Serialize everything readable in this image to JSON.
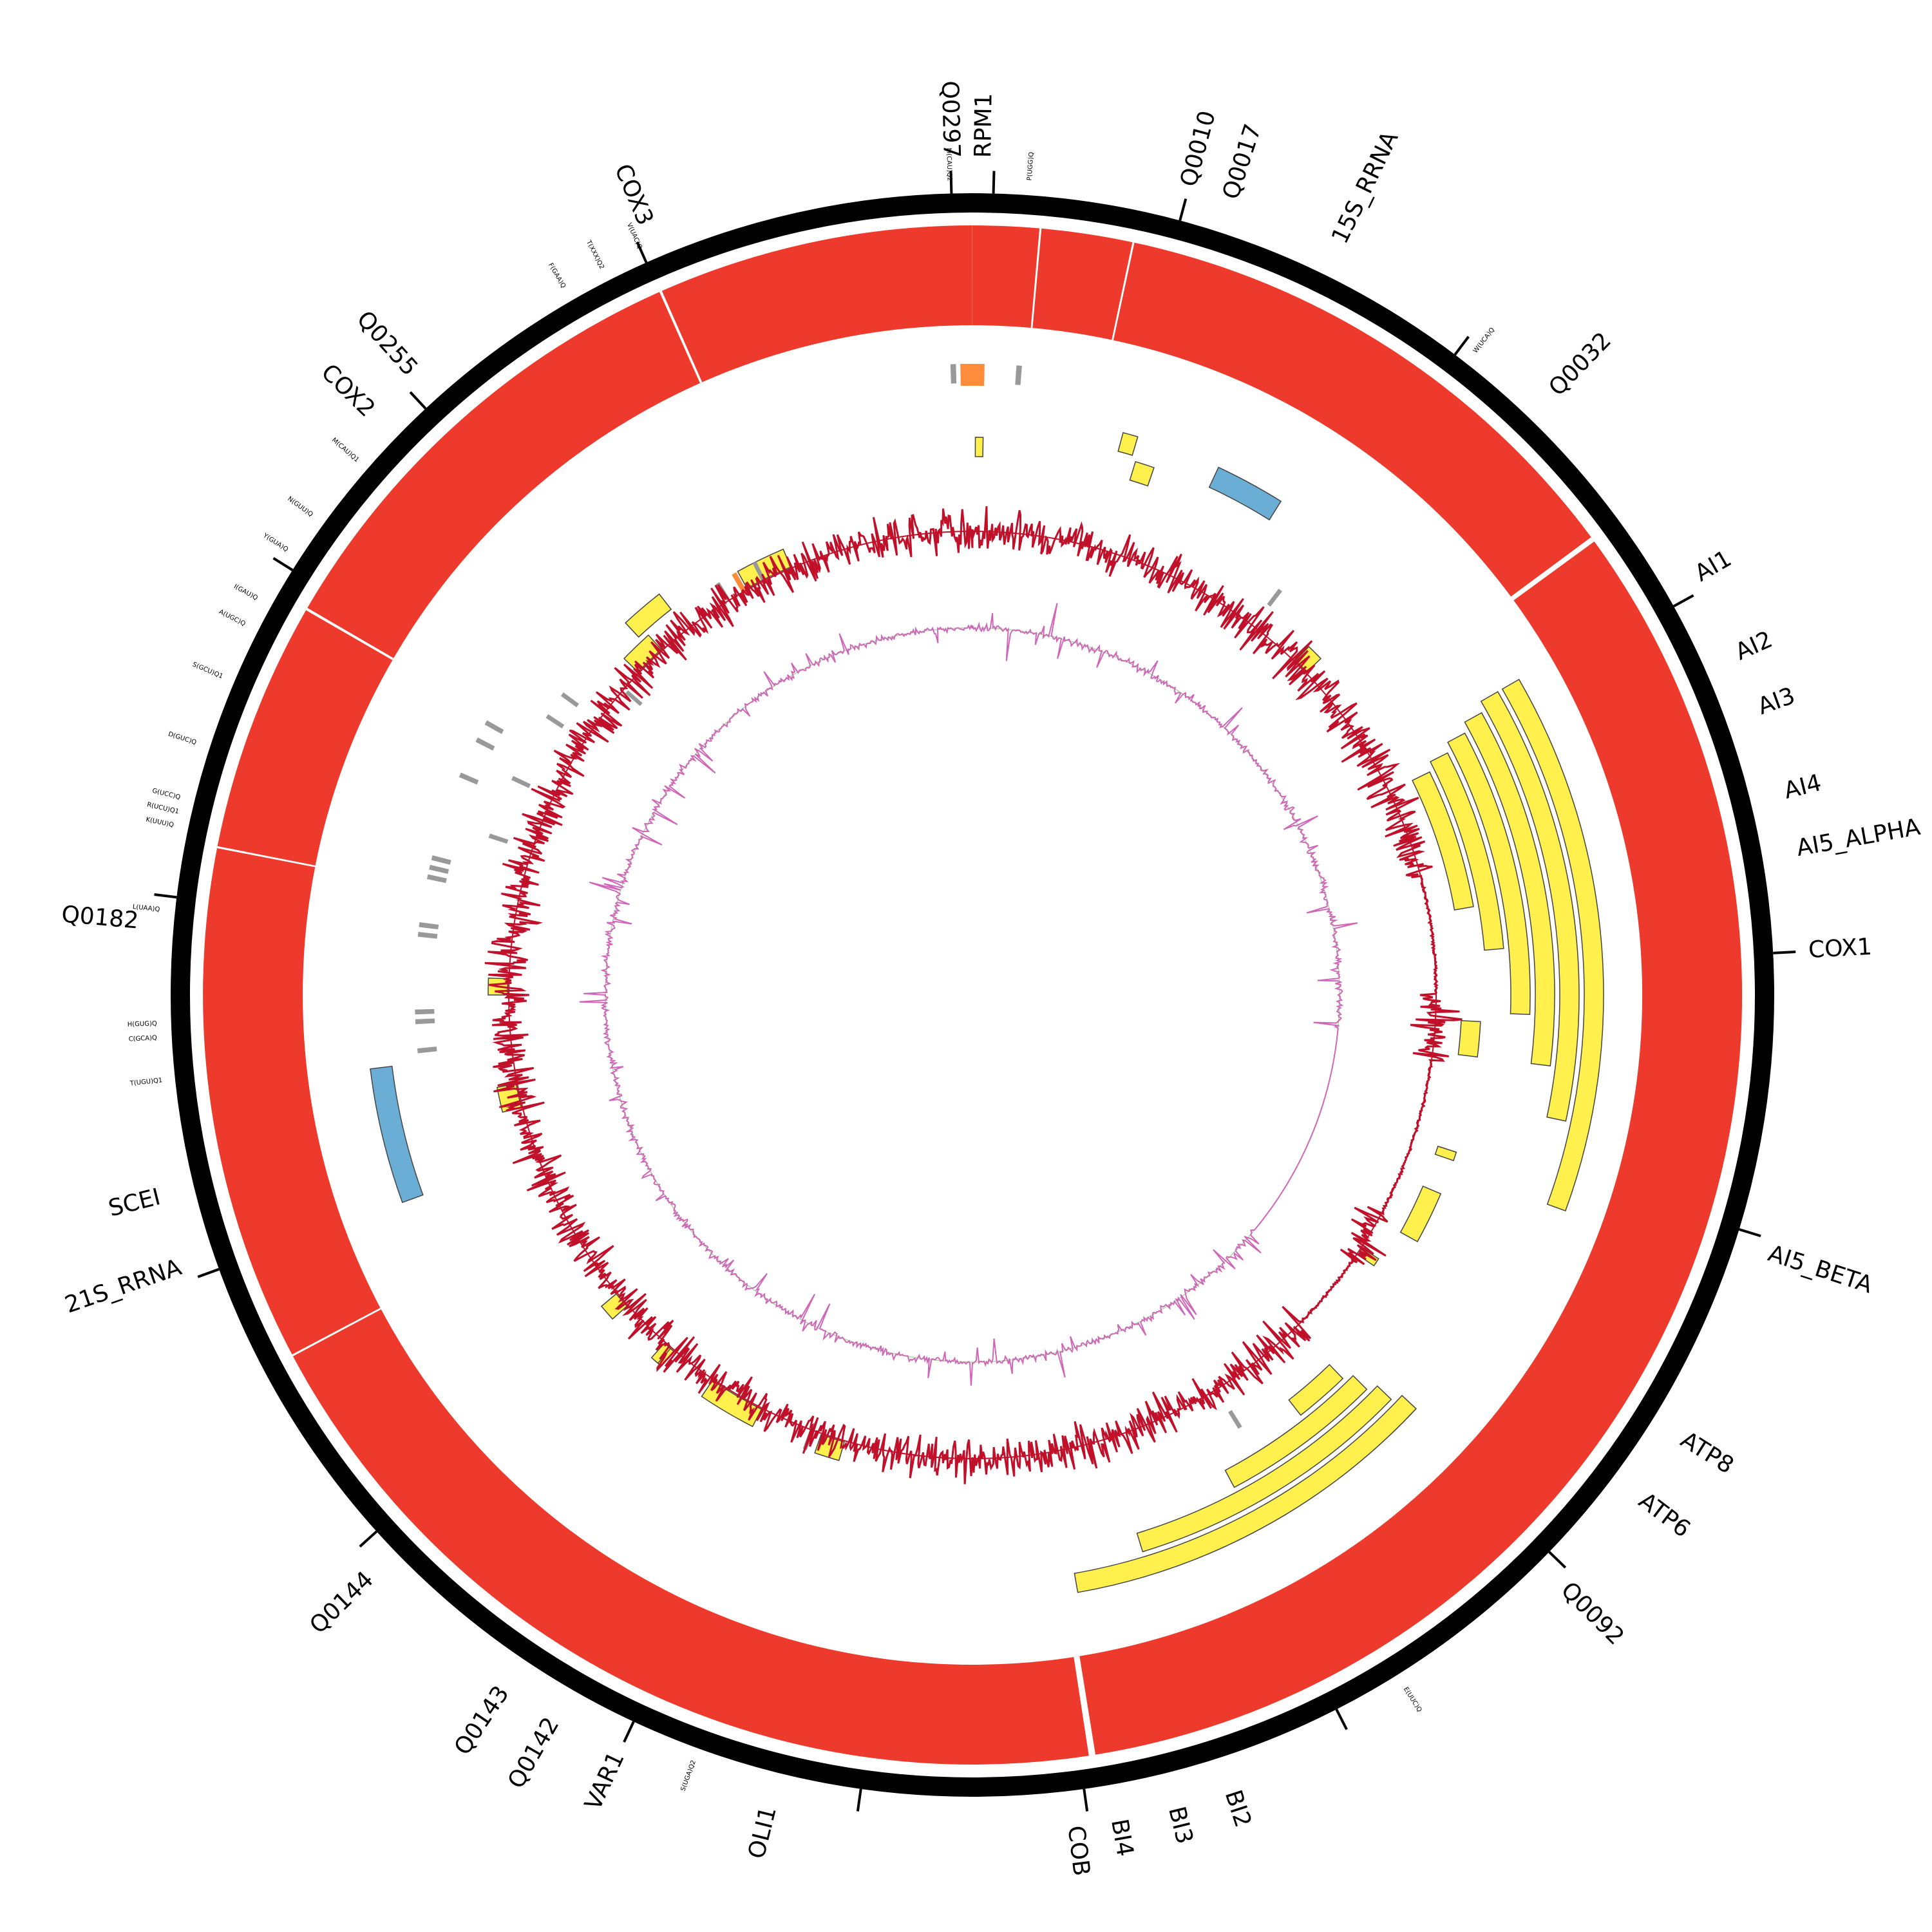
{
  "colors": {
    "backbone": "#000000",
    "coverage": "#ee3a2c",
    "gene": "#fff04d",
    "rrna": "#6aaed6",
    "trna": "#999999",
    "orange": "#ff8c3a",
    "gc_skew": "#c0102a",
    "gc_content": "#d066b8",
    "gc_content_alt": "#a8d8a0"
  },
  "gene_labels": [
    {
      "id": "Q0297",
      "text": "Q0297",
      "angle": -1.5
    },
    {
      "id": "RPM1",
      "text": "RPM1",
      "angle": 0.8
    },
    {
      "id": "Q0010",
      "text": "Q0010",
      "angle": 15
    },
    {
      "id": "Q0017",
      "text": "Q0017",
      "angle": 18
    },
    {
      "id": "15S_RRNA",
      "text": "15S_RRNA",
      "angle": 26
    },
    {
      "id": "Q0032",
      "text": "Q0032",
      "angle": 44
    },
    {
      "id": "AI1",
      "text": "AI1",
      "angle": 60
    },
    {
      "id": "AI2",
      "text": "AI2",
      "angle": 66
    },
    {
      "id": "AI3",
      "text": "AI3",
      "angle": 70
    },
    {
      "id": "AI4",
      "text": "AI4",
      "angle": 76
    },
    {
      "id": "AI5_ALPHA",
      "text": "AI5_ALPHA",
      "angle": 80
    },
    {
      "id": "COX1",
      "text": "COX1",
      "angle": 87
    },
    {
      "id": "AI5_BETA",
      "text": "AI5_BETA",
      "angle": 108
    },
    {
      "id": "ATP8",
      "text": "ATP8",
      "angle": 122
    },
    {
      "id": "ATP6",
      "text": "ATP6",
      "angle": 127
    },
    {
      "id": "Q0092",
      "text": "Q0092",
      "angle": 135
    },
    {
      "id": "BI2",
      "text": "BI2",
      "angle": 162
    },
    {
      "id": "BI3",
      "text": "BI3",
      "angle": 166
    },
    {
      "id": "BI4",
      "text": "BI4",
      "angle": 170
    },
    {
      "id": "COB",
      "text": "COB",
      "angle": 173
    },
    {
      "id": "OLI1",
      "text": "OLI1",
      "angle": 194
    },
    {
      "id": "VAR1",
      "text": "VAR1",
      "angle": 205
    },
    {
      "id": "Q0142",
      "text": "Q0142",
      "angle": 210
    },
    {
      "id": "Q0143",
      "text": "Q0143",
      "angle": 214
    },
    {
      "id": "Q0144",
      "text": "Q0144",
      "angle": 226
    },
    {
      "id": "21S_RRNA",
      "text": "21S_RRNA",
      "angle": 251
    },
    {
      "id": "SCEI",
      "text": "SCEI",
      "angle": 256
    },
    {
      "id": "Q0182",
      "text": "Q0182",
      "angle": 275
    },
    {
      "id": "COX2",
      "text": "COX2",
      "angle": 314
    },
    {
      "id": "Q0255",
      "text": "Q0255",
      "angle": 318
    },
    {
      "id": "COX3",
      "text": "COX3",
      "angle": 337
    }
  ],
  "trna_labels": [
    {
      "id": "M(CAU)Q2",
      "text": "M(CAU)Q2",
      "angle": -1.6
    },
    {
      "id": "P(UGG)Q",
      "text": "P(UGG)Q",
      "angle": 4
    },
    {
      "id": "W(UCA)Q",
      "text": "W(UCA)Q",
      "angle": 38
    },
    {
      "id": "E(UUC)Q",
      "text": "E(UUC)Q",
      "angle": 148
    },
    {
      "id": "S(UGA)Q2",
      "text": "S(UGA)Q2",
      "angle": 200
    },
    {
      "id": "T(UGU)Q1",
      "text": "T(UGU)Q1",
      "angle": 264
    },
    {
      "id": "C(GCA)Q",
      "text": "C(GCA)Q",
      "angle": 267
    },
    {
      "id": "H(GUG)Q",
      "text": "H(GUG)Q",
      "angle": 268
    },
    {
      "id": "L(UAA)Q",
      "text": "L(UAA)Q",
      "angle": 276
    },
    {
      "id": "K(UUU)Q",
      "text": "K(UUU)Q",
      "angle": 282
    },
    {
      "id": "R(UCU)Q1",
      "text": "R(UCU)Q1",
      "angle": 283
    },
    {
      "id": "G(UCC)Q",
      "text": "G(UCC)Q",
      "angle": 284
    },
    {
      "id": "D(GUC)Q",
      "text": "D(GUC)Q",
      "angle": 288
    },
    {
      "id": "S(GCU)Q1",
      "text": "S(GCU)Q1",
      "angle": 293
    },
    {
      "id": "A(UGC)Q",
      "text": "A(UGC)Q",
      "angle": 297
    },
    {
      "id": "I(GAU)Q",
      "text": "I(GAU)Q",
      "angle": 299
    },
    {
      "id": "Y(GUA)Q",
      "text": "Y(GUA)Q",
      "angle": 303
    },
    {
      "id": "N(GUU)Q",
      "text": "N(GUU)Q",
      "angle": 306
    },
    {
      "id": "M(CAU)Q1",
      "text": "M(CAU)Q1",
      "angle": 311
    },
    {
      "id": "F(GAA)Q",
      "text": "F(GAA)Q",
      "angle": 330
    },
    {
      "id": "T(XXX)Q2",
      "text": "T(XXX)Q2",
      "angle": 333
    },
    {
      "id": "V(UAC)Q",
      "text": "V(UAC)Q",
      "angle": 336
    }
  ],
  "ticks": [
    -1.5,
    1.5,
    15,
    37,
    61,
    87,
    107,
    134,
    153,
    172,
    188,
    205,
    228,
    250,
    277,
    302,
    317,
    336
  ],
  "gene_blocks": [
    {
      "start": 60,
      "end": 110,
      "level": 0
    },
    {
      "start": 60,
      "end": 102,
      "level": 1
    },
    {
      "start": 61,
      "end": 97,
      "level": 2
    },
    {
      "start": 62,
      "end": 92,
      "level": 3
    },
    {
      "start": 63,
      "end": 85,
      "level": 4
    },
    {
      "start": 64,
      "end": 80,
      "level": 5
    },
    {
      "start": 133,
      "end": 170,
      "level": 1
    },
    {
      "start": 134,
      "end": 163,
      "level": 2
    },
    {
      "start": 135,
      "end": 152,
      "level": 3
    },
    {
      "start": 136,
      "end": 142,
      "level": 4
    },
    {
      "start": 93,
      "end": 97,
      "level": 5
    },
    {
      "start": 108,
      "end": 109,
      "level": 5
    },
    {
      "start": 113,
      "end": 119,
      "level": 5
    },
    {
      "start": 123,
      "end": 124,
      "level": 6
    },
    {
      "start": 207,
      "end": 214,
      "level": 6
    },
    {
      "start": 220,
      "end": 221,
      "level": 6
    },
    {
      "start": 220.5,
      "end": 221.5,
      "level": 6
    },
    {
      "start": 228,
      "end": 230,
      "level": 6
    },
    {
      "start": 256,
      "end": 259,
      "level": 6
    },
    {
      "start": 270,
      "end": 272,
      "level": 6
    },
    {
      "start": 317,
      "end": 322,
      "level": 5
    },
    {
      "start": 314,
      "end": 318,
      "level": 6
    },
    {
      "start": 331,
      "end": 337,
      "level": 6
    },
    {
      "start": 0.3,
      "end": 1.1,
      "level": 3
    },
    {
      "start": 17,
      "end": 19,
      "level": 3
    },
    {
      "start": 15,
      "end": 16.5,
      "level": 2
    },
    {
      "start": 196,
      "end": 199,
      "level": 6
    },
    {
      "start": 44,
      "end": 46,
      "level": 6
    }
  ],
  "rrna_blocks": [
    {
      "start": 25,
      "end": 32,
      "level": 2
    },
    {
      "start": 250,
      "end": 263,
      "level": 1
    }
  ],
  "trna_marks": [
    {
      "angle": -2,
      "level": 0
    },
    {
      "angle": 4,
      "level": 0
    },
    {
      "angle": 37,
      "level": 5
    },
    {
      "angle": 148,
      "level": 5
    },
    {
      "angle": 200,
      "level": 6
    },
    {
      "angle": 264,
      "level": 3
    },
    {
      "angle": 267,
      "level": 3
    },
    {
      "angle": 268,
      "level": 3
    },
    {
      "angle": 276,
      "level": 3
    },
    {
      "angle": 277,
      "level": 3
    },
    {
      "angle": 282,
      "level": 3
    },
    {
      "angle": 283,
      "level": 3
    },
    {
      "angle": 284,
      "level": 3
    },
    {
      "angle": 288,
      "level": 5
    },
    {
      "angle": 293,
      "level": 3
    },
    {
      "angle": 295,
      "level": 5
    },
    {
      "angle": 297,
      "level": 3
    },
    {
      "angle": 299,
      "level": 3
    },
    {
      "angle": 303,
      "level": 5
    },
    {
      "angle": 306,
      "level": 5
    },
    {
      "angle": 311,
      "level": 7
    },
    {
      "angle": 328,
      "level": 6
    },
    {
      "angle": 333,
      "level": 6
    }
  ],
  "orange_marks": [
    {
      "angle": 0,
      "level": 0,
      "width": 2.2
    },
    {
      "angle": 330.5,
      "level": 6,
      "width": 0.6
    }
  ]
}
